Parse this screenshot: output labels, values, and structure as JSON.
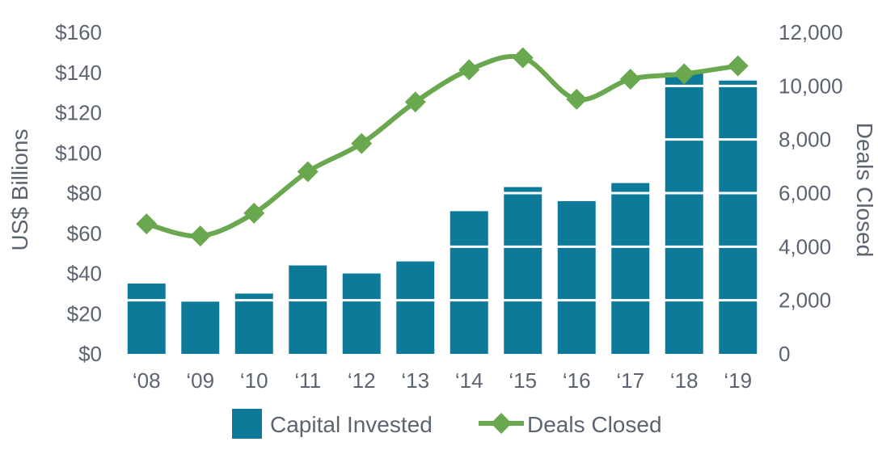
{
  "chart_data": {
    "type": "bar",
    "categories": [
      "‘08",
      "‘09",
      "‘10",
      "‘11",
      "‘12",
      "‘13",
      "‘14",
      "‘15",
      "‘16",
      "‘17",
      "‘18",
      "‘19"
    ],
    "series": [
      {
        "name": "Capital Invested",
        "type": "bar",
        "axis": "left",
        "color": "#0e7a9a",
        "values": [
          35,
          26,
          30,
          44,
          40,
          46,
          71,
          83,
          76,
          85,
          140,
          136
        ]
      },
      {
        "name": "Deals Closed",
        "type": "line",
        "axis": "right",
        "color": "#6aa84f",
        "values": [
          4850,
          4400,
          5250,
          6800,
          7850,
          9400,
          10600,
          11050,
          9500,
          10250,
          10450,
          10750
        ]
      }
    ],
    "y_left": {
      "label": "US$ Billions",
      "range": [
        0,
        160
      ],
      "ticks": [
        0,
        20,
        40,
        60,
        80,
        100,
        120,
        140,
        160
      ],
      "tick_labels": [
        "$0",
        "$20",
        "$40",
        "$60",
        "$80",
        "$100",
        "$120",
        "$140",
        "$160"
      ]
    },
    "y_right": {
      "label": "Deals Closed",
      "range": [
        0,
        12000
      ],
      "ticks": [
        0,
        2000,
        4000,
        6000,
        8000,
        10000,
        12000
      ],
      "tick_labels": [
        "0",
        "2,000",
        "4,000",
        "6,000",
        "8,000",
        "10,000",
        "12,000"
      ]
    },
    "gridlines": true,
    "legend": {
      "placement": "bottom",
      "items": [
        "Capital Invested",
        "Deals Closed"
      ]
    },
    "marker": "diamond"
  }
}
